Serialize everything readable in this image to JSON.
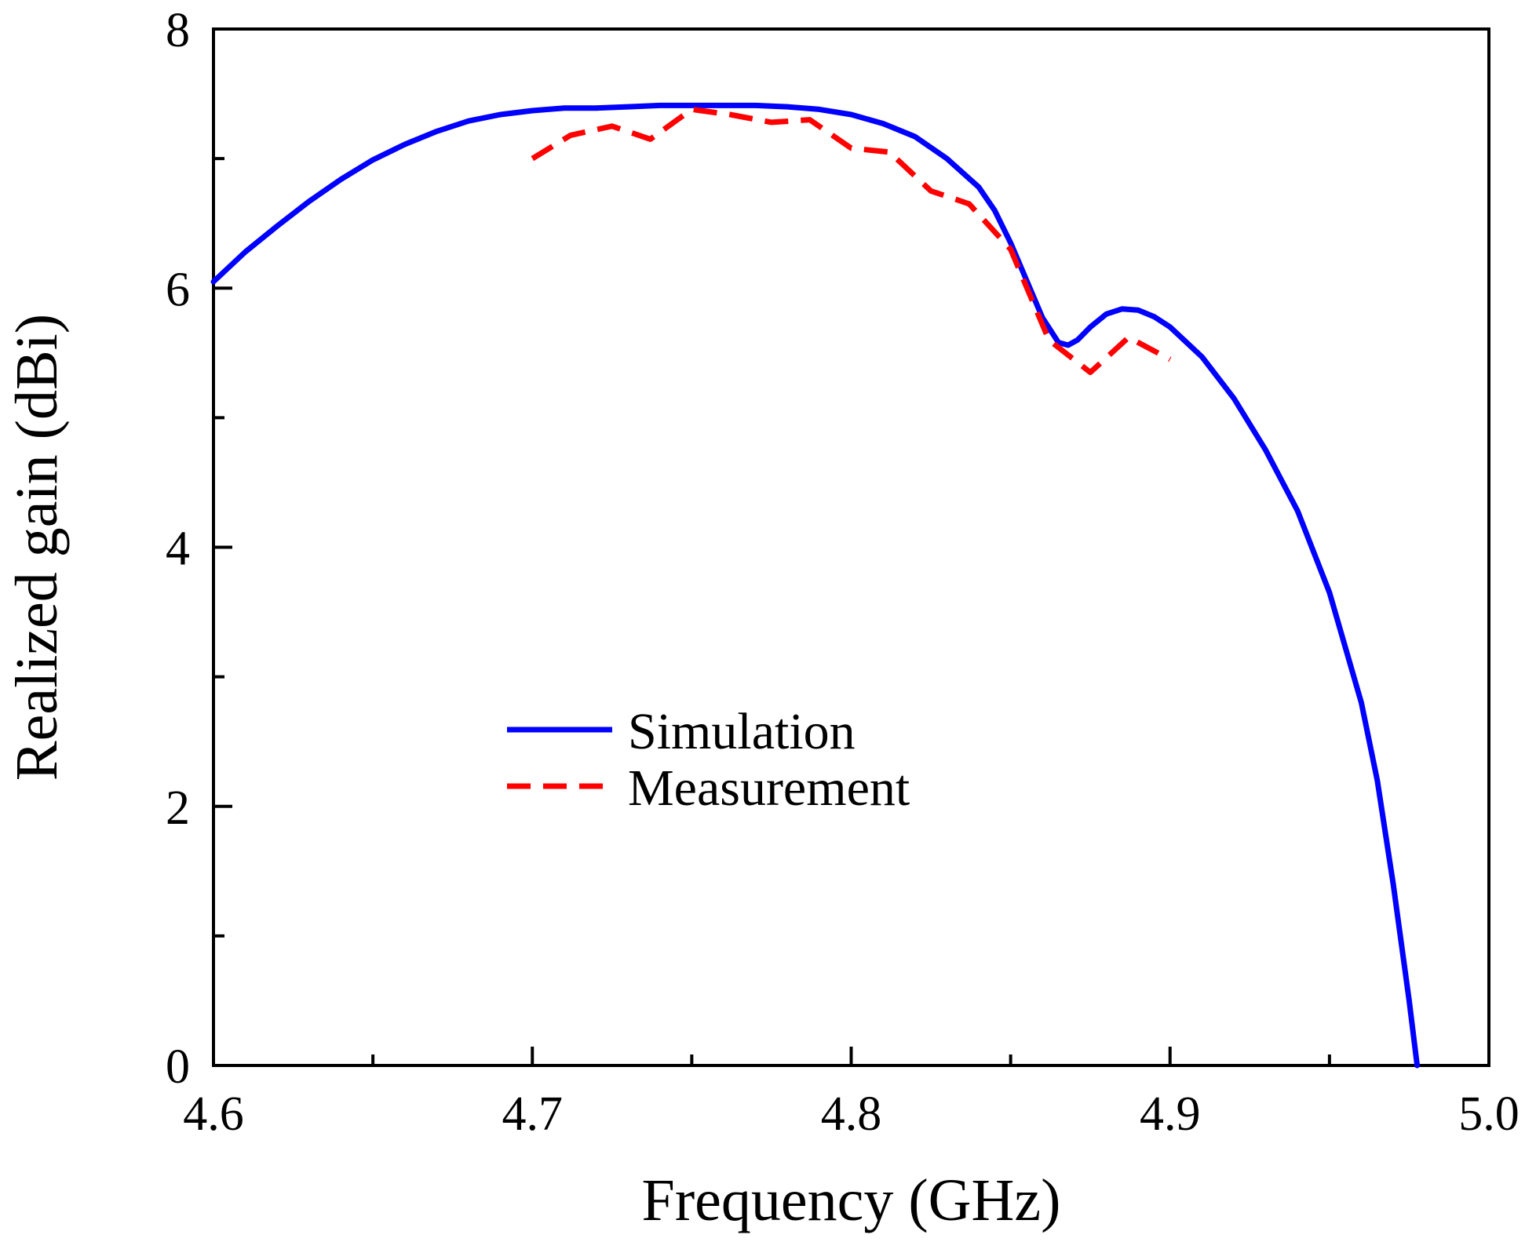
{
  "chart_data": {
    "type": "line",
    "title": "",
    "xlabel": "Frequency (GHz)",
    "ylabel": "Realized gain (dBi)",
    "xlim": [
      4.6,
      5.0
    ],
    "ylim": [
      0,
      8
    ],
    "x_ticks": [
      4.6,
      4.7,
      4.8,
      4.9,
      5.0
    ],
    "x_tick_labels": [
      "4.6",
      "4.7",
      "4.8",
      "4.9",
      "5.0"
    ],
    "x_minor_ticks": [
      4.65,
      4.75,
      4.85,
      4.95
    ],
    "y_ticks": [
      0,
      2,
      4,
      6,
      8
    ],
    "y_tick_labels": [
      "0",
      "2",
      "4",
      "6",
      "8"
    ],
    "y_minor_ticks": [
      1,
      3,
      5,
      7
    ],
    "grid": false,
    "legend_position": "center-left",
    "series": [
      {
        "name": "Simulation",
        "color": "#0000ff",
        "style": "solid",
        "x": [
          4.6,
          4.61,
          4.62,
          4.63,
          4.64,
          4.65,
          4.66,
          4.67,
          4.68,
          4.69,
          4.7,
          4.71,
          4.72,
          4.73,
          4.74,
          4.75,
          4.76,
          4.77,
          4.78,
          4.79,
          4.8,
          4.81,
          4.82,
          4.83,
          4.84,
          4.845,
          4.85,
          4.855,
          4.86,
          4.865,
          4.868,
          4.871,
          4.875,
          4.88,
          4.885,
          4.89,
          4.895,
          4.9,
          4.91,
          4.92,
          4.93,
          4.94,
          4.95,
          4.96,
          4.965,
          4.97,
          4.975,
          4.9775
        ],
        "values": [
          6.05,
          6.28,
          6.48,
          6.67,
          6.84,
          6.99,
          7.11,
          7.21,
          7.29,
          7.34,
          7.37,
          7.39,
          7.39,
          7.4,
          7.41,
          7.41,
          7.41,
          7.41,
          7.4,
          7.38,
          7.34,
          7.27,
          7.17,
          7.0,
          6.78,
          6.6,
          6.35,
          6.06,
          5.77,
          5.58,
          5.56,
          5.6,
          5.7,
          5.8,
          5.84,
          5.83,
          5.78,
          5.7,
          5.47,
          5.15,
          4.75,
          4.28,
          3.65,
          2.8,
          2.2,
          1.4,
          0.5,
          0.0
        ]
      },
      {
        "name": "Measurement",
        "color": "#ff0000",
        "style": "dashed",
        "x": [
          4.7,
          4.712,
          4.725,
          4.737,
          4.75,
          4.762,
          4.775,
          4.787,
          4.8,
          4.812,
          4.825,
          4.837,
          4.85,
          4.862,
          4.875,
          4.887,
          4.9
        ],
        "values": [
          7.0,
          7.18,
          7.25,
          7.15,
          7.38,
          7.34,
          7.28,
          7.3,
          7.08,
          7.05,
          6.75,
          6.65,
          6.3,
          5.6,
          5.35,
          5.62,
          5.45
        ]
      }
    ]
  }
}
